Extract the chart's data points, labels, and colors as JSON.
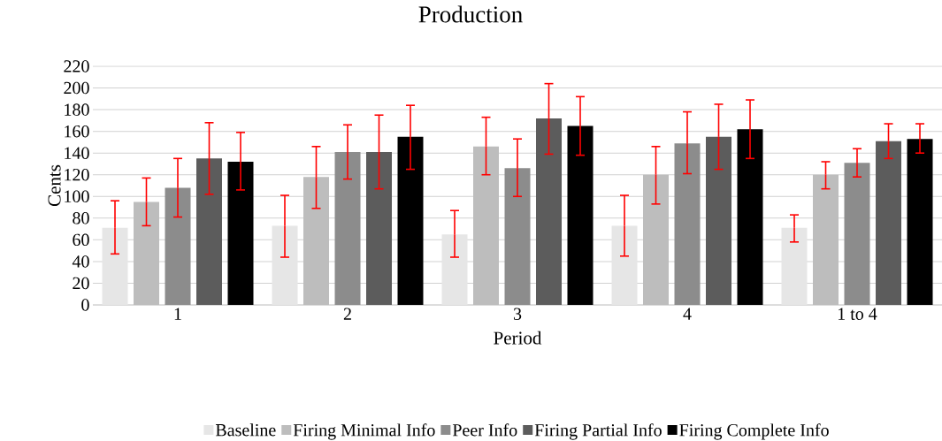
{
  "chart_data": {
    "type": "bar",
    "title": "Production",
    "xlabel": "Period",
    "ylabel": "Cents",
    "categories": [
      "1",
      "2",
      "3",
      "4",
      "1 to 4"
    ],
    "ylim": [
      0,
      220
    ],
    "yticks": [
      0,
      20,
      40,
      60,
      80,
      100,
      120,
      140,
      160,
      180,
      200,
      220
    ],
    "grid": "y",
    "legend": "bottom",
    "series": [
      {
        "name": "Baseline",
        "color": "#e6e6e6",
        "values": [
          71,
          73,
          65,
          73,
          71
        ],
        "errors": [
          [
            47,
            96
          ],
          [
            44,
            101
          ],
          [
            44,
            87
          ],
          [
            45,
            101
          ],
          [
            58,
            83
          ]
        ]
      },
      {
        "name": "Firing Minimal Info",
        "color": "#bdbdbd",
        "values": [
          95,
          118,
          146,
          120,
          120
        ],
        "errors": [
          [
            73,
            117
          ],
          [
            89,
            146
          ],
          [
            120,
            173
          ],
          [
            93,
            146
          ],
          [
            107,
            132
          ]
        ]
      },
      {
        "name": "Peer Info",
        "color": "#8c8c8c",
        "values": [
          108,
          141,
          126,
          149,
          131
        ],
        "errors": [
          [
            81,
            135
          ],
          [
            116,
            166
          ],
          [
            100,
            153
          ],
          [
            121,
            178
          ],
          [
            118,
            144
          ]
        ]
      },
      {
        "name": "Firing Partial Info",
        "color": "#5c5c5c",
        "values": [
          135,
          141,
          172,
          155,
          151
        ],
        "errors": [
          [
            102,
            168
          ],
          [
            107,
            175
          ],
          [
            139,
            204
          ],
          [
            125,
            185
          ],
          [
            135,
            167
          ]
        ]
      },
      {
        "name": "Firing Complete Info",
        "color": "#000000",
        "values": [
          132,
          155,
          165,
          162,
          153
        ],
        "errors": [
          [
            106,
            159
          ],
          [
            125,
            184
          ],
          [
            138,
            192
          ],
          [
            135,
            189
          ],
          [
            140,
            167
          ]
        ]
      }
    ]
  }
}
